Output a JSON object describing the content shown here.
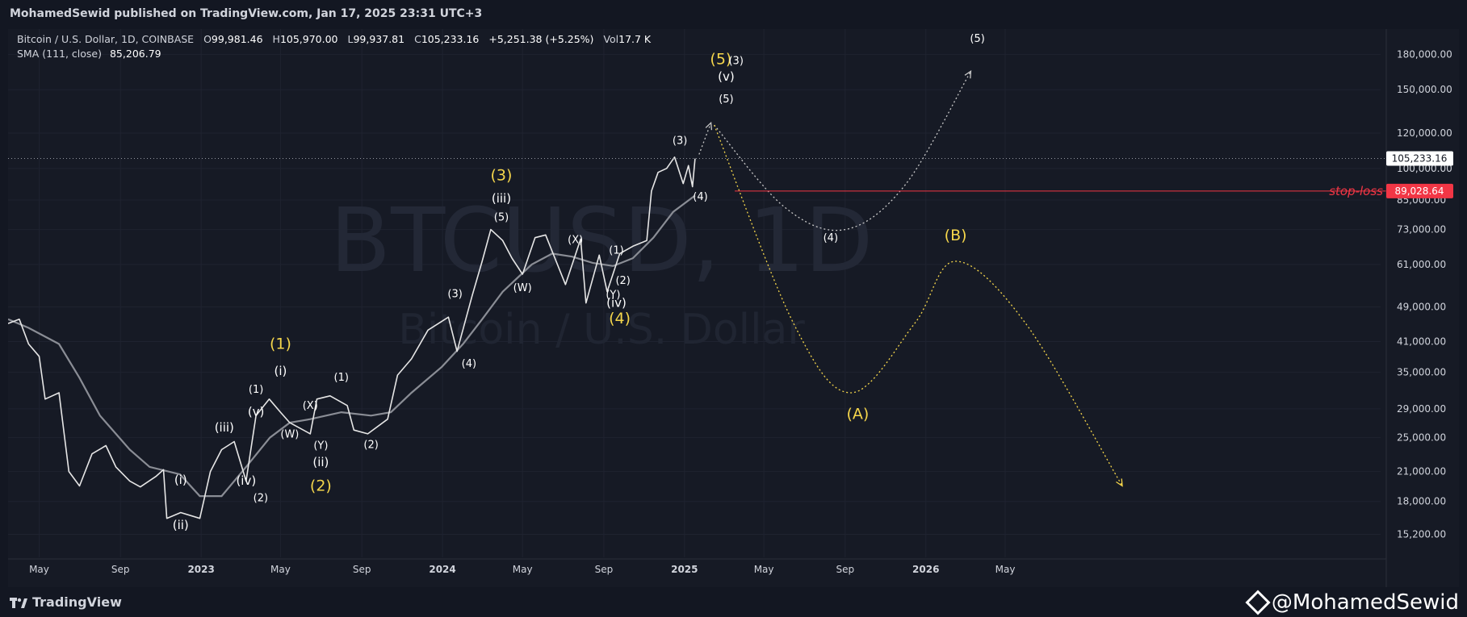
{
  "header": {
    "published": "MohamedSewid published on TradingView.com, Jan 17, 2025 23:31 UTC+3"
  },
  "legend": {
    "symbol": "Bitcoin / U.S. Dollar, 1D, COINBASE",
    "o_label": "O",
    "o": "99,981.46",
    "h_label": "H",
    "h": "105,970.00",
    "l_label": "L",
    "l": "99,937.81",
    "c_label": "C",
    "c": "105,233.16",
    "change": "+5,251.38 (+5.25%)",
    "vol_label": "Vol",
    "vol": "17.7 K",
    "sma_label": "SMA (111, close)",
    "sma_value": "85,206.79"
  },
  "watermark": {
    "big": "BTCUSD, 1D",
    "small": "Bitcoin / U.S. Dollar"
  },
  "footer": {
    "brand": "TradingView",
    "author": "@MohamedSewid"
  },
  "colors": {
    "yellow": "#f5d64b",
    "white": "#ffffff",
    "stoploss": "#f23645",
    "price_line": "#9598a1",
    "sma": "#8a8d95"
  },
  "price_labels": {
    "current": "105,233.16",
    "stoploss": "89,028.64",
    "stoploss_text": "stop-loss"
  },
  "chart_data": {
    "type": "line",
    "scale": "log",
    "ylim": [
      13500,
      205000
    ],
    "y_ticks": [
      {
        "v": 15200,
        "label": "15,200.00"
      },
      {
        "v": 18000,
        "label": "18,000.00"
      },
      {
        "v": 21000,
        "label": "21,000.00"
      },
      {
        "v": 25000,
        "label": "25,000.00"
      },
      {
        "v": 29000,
        "label": "29,000.00"
      },
      {
        "v": 35000,
        "label": "35,000.00"
      },
      {
        "v": 41000,
        "label": "41,000.00"
      },
      {
        "v": 49000,
        "label": "49,000.00"
      },
      {
        "v": 61000,
        "label": "61,000.00"
      },
      {
        "v": 73000,
        "label": "73,000.00"
      },
      {
        "v": 85000,
        "label": "85,000.00"
      },
      {
        "v": 100000,
        "label": "100,000.00"
      },
      {
        "v": 120000,
        "label": "120,000.00"
      },
      {
        "v": 150000,
        "label": "150,000.00"
      },
      {
        "v": 180000,
        "label": "180,000.00"
      }
    ],
    "x_ticks": [
      {
        "date": "2022-05",
        "label": "May"
      },
      {
        "date": "2022-09",
        "label": "Sep"
      },
      {
        "date": "2023-01",
        "label": "2023"
      },
      {
        "date": "2023-05",
        "label": "May"
      },
      {
        "date": "2023-09",
        "label": "Sep"
      },
      {
        "date": "2024-01",
        "label": "2024"
      },
      {
        "date": "2024-05",
        "label": "May"
      },
      {
        "date": "2024-09",
        "label": "Sep"
      },
      {
        "date": "2025-01",
        "label": "2025"
      },
      {
        "date": "2025-05",
        "label": "May"
      },
      {
        "date": "2025-09",
        "label": "Sep"
      },
      {
        "date": "2026-01",
        "label": "2026"
      },
      {
        "date": "2026-05",
        "label": "May"
      }
    ],
    "series": [
      {
        "values": [
          [
            "2022-03-15",
            45000
          ],
          [
            "2022-04-01",
            46000
          ],
          [
            "2022-04-15",
            40500
          ],
          [
            "2022-05-01",
            38000
          ],
          [
            "2022-05-10",
            30500
          ],
          [
            "2022-05-31",
            31500
          ],
          [
            "2022-06-15",
            21000
          ],
          [
            "2022-07-01",
            19500
          ],
          [
            "2022-07-20",
            23000
          ],
          [
            "2022-08-10",
            24000
          ],
          [
            "2022-08-25",
            21500
          ],
          [
            "2022-09-15",
            20000
          ],
          [
            "2022-10-01",
            19400
          ],
          [
            "2022-10-25",
            20500
          ],
          [
            "2022-11-05",
            21200
          ],
          [
            "2022-11-10",
            16500
          ],
          [
            "2022-12-01",
            17000
          ],
          [
            "2022-12-30",
            16500
          ],
          [
            "2023-01-15",
            21000
          ],
          [
            "2023-02-01",
            23500
          ],
          [
            "2023-02-20",
            24500
          ],
          [
            "2023-03-10",
            20000
          ],
          [
            "2023-03-25",
            28000
          ],
          [
            "2023-04-14",
            30500
          ],
          [
            "2023-05-01",
            28500
          ],
          [
            "2023-05-15",
            27000
          ],
          [
            "2023-06-15",
            25500
          ],
          [
            "2023-06-25",
            30500
          ],
          [
            "2023-07-15",
            31000
          ],
          [
            "2023-08-10",
            29500
          ],
          [
            "2023-08-20",
            26000
          ],
          [
            "2023-09-10",
            25500
          ],
          [
            "2023-10-10",
            27500
          ],
          [
            "2023-10-25",
            34500
          ],
          [
            "2023-11-15",
            37500
          ],
          [
            "2023-12-10",
            43500
          ],
          [
            "2024-01-10",
            46500
          ],
          [
            "2024-01-23",
            39000
          ],
          [
            "2024-02-15",
            52000
          ],
          [
            "2024-03-01",
            62000
          ],
          [
            "2024-03-14",
            73000
          ],
          [
            "2024-04-01",
            69000
          ],
          [
            "2024-04-15",
            63000
          ],
          [
            "2024-05-01",
            58000
          ],
          [
            "2024-05-20",
            70000
          ],
          [
            "2024-06-05",
            71000
          ],
          [
            "2024-07-05",
            55000
          ],
          [
            "2024-07-28",
            69500
          ],
          [
            "2024-08-05",
            50000
          ],
          [
            "2024-08-25",
            64000
          ],
          [
            "2024-09-06",
            53000
          ],
          [
            "2024-09-25",
            64500
          ],
          [
            "2024-10-15",
            67000
          ],
          [
            "2024-11-05",
            69000
          ],
          [
            "2024-11-12",
            89000
          ],
          [
            "2024-11-22",
            98000
          ],
          [
            "2024-12-05",
            100000
          ],
          [
            "2024-12-17",
            106000
          ],
          [
            "2024-12-30",
            92500
          ],
          [
            "2025-01-07",
            101500
          ],
          [
            "2025-01-13",
            91000
          ],
          [
            "2025-01-17",
            105233
          ]
        ]
      },
      {
        "values": [
          [
            "2022-03-15",
            46000
          ],
          [
            "2022-04-15",
            44000
          ],
          [
            "2022-05-31",
            40500
          ],
          [
            "2022-07-01",
            34000
          ],
          [
            "2022-08-01",
            28000
          ],
          [
            "2022-09-15",
            23500
          ],
          [
            "2022-10-15",
            21500
          ],
          [
            "2022-11-30",
            20700
          ],
          [
            "2022-12-30",
            18500
          ],
          [
            "2023-02-01",
            18500
          ],
          [
            "2023-03-10",
            21500
          ],
          [
            "2023-04-15",
            25000
          ],
          [
            "2023-05-15",
            27000
          ],
          [
            "2023-06-15",
            27500
          ],
          [
            "2023-08-01",
            28500
          ],
          [
            "2023-09-15",
            28000
          ],
          [
            "2023-10-15",
            28500
          ],
          [
            "2023-11-15",
            31500
          ],
          [
            "2023-12-31",
            36000
          ],
          [
            "2024-02-01",
            40500
          ],
          [
            "2024-03-01",
            46000
          ],
          [
            "2024-04-01",
            53000
          ],
          [
            "2024-05-15",
            61000
          ],
          [
            "2024-06-15",
            64500
          ],
          [
            "2024-07-15",
            63500
          ],
          [
            "2024-08-15",
            61500
          ],
          [
            "2024-09-15",
            60500
          ],
          [
            "2024-10-15",
            63000
          ],
          [
            "2024-11-15",
            70000
          ],
          [
            "2024-12-15",
            80000
          ],
          [
            "2025-01-17",
            87000
          ]
        ]
      }
    ],
    "projections": [
      {
        "color": "white",
        "points": [
          [
            "2025-02-15",
            125000
          ],
          [
            "2025-06-01",
            82000
          ],
          [
            "2025-09-01",
            73000
          ],
          [
            "2025-12-01",
            92000
          ],
          [
            "2026-03-10",
            165000
          ]
        ]
      },
      {
        "color": "yellow",
        "points": [
          [
            "2025-02-15",
            125000
          ],
          [
            "2025-06-15",
            45000
          ],
          [
            "2025-09-10",
            31500
          ],
          [
            "2025-12-15",
            45000
          ],
          [
            "2026-02-15",
            62000
          ],
          [
            "2026-06-01",
            45000
          ],
          [
            "2026-10-25",
            19500
          ]
        ]
      },
      {
        "color": "white",
        "points": [
          [
            "2025-01-23",
            107500
          ],
          [
            "2025-02-10",
            126500
          ]
        ]
      }
    ],
    "wave_labels": [
      {
        "text": "(i)",
        "date": "2022-12-01",
        "v": 19700,
        "c": "white"
      },
      {
        "text": "(ii)",
        "date": "2022-12-01",
        "v": 15600,
        "c": "white"
      },
      {
        "text": "(iii)",
        "date": "2023-02-05",
        "v": 25800,
        "c": "white"
      },
      {
        "text": "(iv)",
        "date": "2023-03-10",
        "v": 19600,
        "c": "white"
      },
      {
        "text": "(v)",
        "date": "2023-03-25",
        "v": 28000,
        "c": "white"
      },
      {
        "text": "(1)",
        "date": "2023-03-25",
        "v": 31500,
        "c": "white"
      },
      {
        "text": "(2)",
        "date": "2023-04-01",
        "v": 18000,
        "c": "white"
      },
      {
        "text": "(i)",
        "date": "2023-05-01",
        "v": 34500,
        "c": "white"
      },
      {
        "text": "(1)",
        "date": "2023-05-01",
        "v": 39500,
        "c": "yellow"
      },
      {
        "text": "(W)",
        "date": "2023-05-15",
        "v": 25000,
        "c": "white"
      },
      {
        "text": "(X)",
        "date": "2023-06-15",
        "v": 29000,
        "c": "white"
      },
      {
        "text": "(Y)",
        "date": "2023-07-01",
        "v": 23600,
        "c": "white"
      },
      {
        "text": "(ii)",
        "date": "2023-07-01",
        "v": 21600,
        "c": "white"
      },
      {
        "text": "(2)",
        "date": "2023-07-01",
        "v": 19000,
        "c": "yellow"
      },
      {
        "text": "(1)",
        "date": "2023-08-01",
        "v": 33500,
        "c": "white"
      },
      {
        "text": "(2)",
        "date": "2023-09-15",
        "v": 23700,
        "c": "white"
      },
      {
        "text": "(3)",
        "date": "2024-01-20",
        "v": 51500,
        "c": "white"
      },
      {
        "text": "(4)",
        "date": "2024-02-10",
        "v": 36000,
        "c": "white"
      },
      {
        "text": "(5)",
        "date": "2024-03-30",
        "v": 76500,
        "c": "white"
      },
      {
        "text": "(iii)",
        "date": "2024-03-30",
        "v": 84000,
        "c": "white"
      },
      {
        "text": "(3)",
        "date": "2024-03-30",
        "v": 94000,
        "c": "yellow"
      },
      {
        "text": "(W)",
        "date": "2024-05-01",
        "v": 53200,
        "c": "white"
      },
      {
        "text": "(X)",
        "date": "2024-07-20",
        "v": 68000,
        "c": "white"
      },
      {
        "text": "(1)",
        "date": "2024-09-20",
        "v": 64500,
        "c": "white"
      },
      {
        "text": "(2)",
        "date": "2024-09-30",
        "v": 55200,
        "c": "white"
      },
      {
        "text": "(Y)",
        "date": "2024-09-15",
        "v": 51300,
        "c": "white"
      },
      {
        "text": "(iv)",
        "date": "2024-09-20",
        "v": 49000,
        "c": "white"
      },
      {
        "text": "(4)",
        "date": "2024-09-25",
        "v": 45000,
        "c": "yellow"
      },
      {
        "text": "(3)",
        "date": "2024-12-25",
        "v": 113500,
        "c": "white"
      },
      {
        "text": "(4)",
        "date": "2025-01-25",
        "v": 85000,
        "c": "white"
      },
      {
        "text": "(5)",
        "date": "2025-03-05",
        "v": 140500,
        "c": "white"
      },
      {
        "text": "(v)",
        "date": "2025-03-05",
        "v": 157000,
        "c": "white"
      },
      {
        "text": "(5)",
        "date": "2025-02-25",
        "v": 171000,
        "c": "yellow"
      },
      {
        "text": "(3)",
        "date": "2025-03-20",
        "v": 171000,
        "c": "white"
      },
      {
        "text": "(5)",
        "date": "2026-03-20",
        "v": 192000,
        "c": "white"
      },
      {
        "text": "(4)",
        "date": "2025-08-10",
        "v": 68800,
        "c": "white"
      },
      {
        "text": "(B)",
        "date": "2026-02-15",
        "v": 69000,
        "c": "yellow"
      },
      {
        "text": "(A)",
        "date": "2025-09-20",
        "v": 27500,
        "c": "yellow"
      }
    ]
  }
}
